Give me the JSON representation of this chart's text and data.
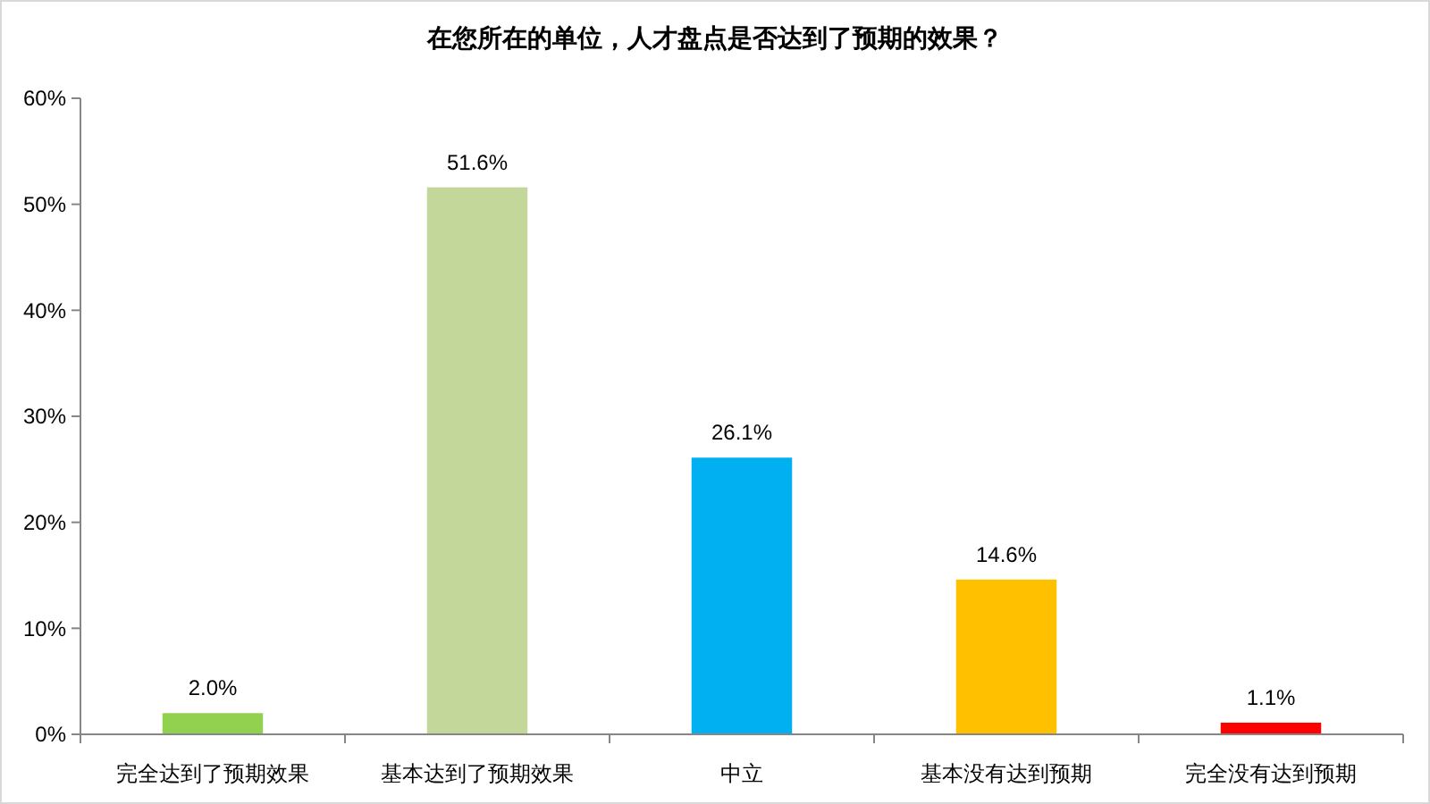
{
  "chart_data": {
    "type": "bar",
    "title": "在您所在的单位，人才盘点是否达到了预期的效果？",
    "categories": [
      "完全达到了预期效果",
      "基本达到了预期效果",
      "中立",
      "基本没有达到预期",
      "完全没有达到预期"
    ],
    "values": [
      2.0,
      51.6,
      26.1,
      14.6,
      1.1
    ],
    "value_labels": [
      "2.0%",
      "51.6%",
      "26.1%",
      "14.6%",
      "1.1%"
    ],
    "colors": [
      "#92d050",
      "#c4d79b",
      "#00b0f0",
      "#ffc000",
      "#ff0000"
    ],
    "ylim": [
      0,
      60
    ],
    "yticks": [
      {
        "value": 0,
        "label": "0%"
      },
      {
        "value": 10,
        "label": "10%"
      },
      {
        "value": 20,
        "label": "20%"
      },
      {
        "value": 30,
        "label": "30%"
      },
      {
        "value": 40,
        "label": "40%"
      },
      {
        "value": 50,
        "label": "50%"
      },
      {
        "value": 60,
        "label": "60%"
      }
    ],
    "grid": false
  }
}
